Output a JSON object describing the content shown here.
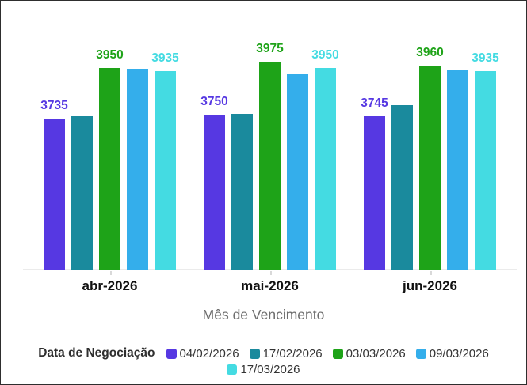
{
  "chart_data": {
    "type": "bar",
    "title": "",
    "xlabel": "Mês de Vencimento",
    "ylabel": "",
    "legend_title": "Data de Negociação",
    "legend_position": "bottom",
    "grid": false,
    "ylim": [
      3085,
      3990
    ],
    "categories": [
      "abr-2026",
      "mai-2026",
      "jun-2026"
    ],
    "series": [
      {
        "name": "04/02/2026",
        "color": "#5638E2",
        "values": [
          3735,
          3750,
          3745
        ],
        "show_labels": true
      },
      {
        "name": "17/02/2026",
        "color": "#1A8A9D",
        "values": [
          3745,
          3755,
          3790
        ],
        "show_labels": false
      },
      {
        "name": "03/03/2026",
        "color": "#1EA318",
        "values": [
          3950,
          3975,
          3960
        ],
        "show_labels": true
      },
      {
        "name": "09/03/2026",
        "color": "#34AEEB",
        "values": [
          3945,
          3925,
          3940
        ],
        "show_labels": false
      },
      {
        "name": "17/03/2026",
        "color": "#44DBE2",
        "values": [
          3935,
          3950,
          3935
        ],
        "show_labels": true
      }
    ]
  }
}
